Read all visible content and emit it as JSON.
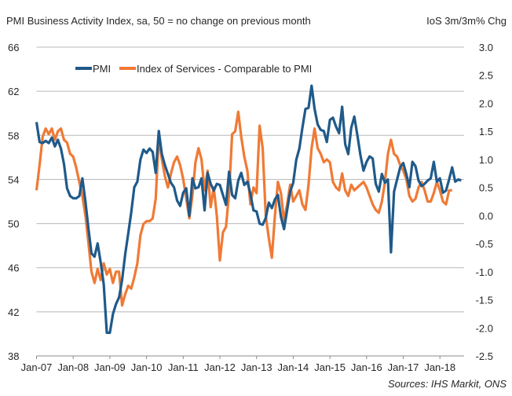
{
  "chart_data": {
    "type": "line",
    "title_left": "PMI Business Activity Index, sa, 50 = no change on previous month",
    "title_right": "IoS 3m/3m% Chg",
    "source": "Sources: IHS Markit, ONS",
    "x_start": "Jan-07",
    "x_tick_labels": [
      "Jan-07",
      "Jan-08",
      "Jan-09",
      "Jan-10",
      "Jan-11",
      "Jan-12",
      "Jan-13",
      "Jan-14",
      "Jan-15",
      "Jan-16",
      "Jan-17",
      "Jan-18"
    ],
    "y_left": {
      "min": 38,
      "max": 66,
      "ticks": [
        "66",
        "62",
        "58",
        "54",
        "50",
        "46",
        "42",
        "38"
      ]
    },
    "y_right": {
      "min": -2.5,
      "max": 3.0,
      "ticks": [
        "3.0",
        "2.5",
        "2.0",
        "1.5",
        "1.0",
        "0.5",
        "0.0",
        "-0.5",
        "-1.0",
        "-1.5",
        "-2.0",
        "-2.5"
      ]
    },
    "grid": true,
    "legend": {
      "position": "top",
      "entries": [
        "PMI",
        "Index of Services - Comparable to PMI"
      ]
    },
    "colors": {
      "pmi": "#1f5a8a",
      "ios": "#ef7a35",
      "grid": "#b8b8b8",
      "axis": "#8c8c8c"
    },
    "series": [
      {
        "name": "PMI",
        "axis": "left",
        "values": [
          59.2,
          57.4,
          57.3,
          57.5,
          57.3,
          57.8,
          57.0,
          57.6,
          56.8,
          55.4,
          53.2,
          52.5,
          52.3,
          52.3,
          52.5,
          54.1,
          52.0,
          49.5,
          47.3,
          47.0,
          48.2,
          46.5,
          44.5,
          40.1,
          40.1,
          41.8,
          42.7,
          43.3,
          44.9,
          47.2,
          49.1,
          51.0,
          53.3,
          53.8,
          55.8,
          56.7,
          56.4,
          56.8,
          56.5,
          54.6,
          58.4,
          56.3,
          55.3,
          54.5,
          53.7,
          53.3,
          52.1,
          51.6,
          52.8,
          53.2,
          50.7,
          54.1,
          53.2,
          53.3,
          54.1,
          51.2,
          54.6,
          53.6,
          53.0,
          53.6,
          53.5,
          52.6,
          51.7,
          54.7,
          52.6,
          52.3,
          53.9,
          54.6,
          53.5,
          53.8,
          52.7,
          51.2,
          51.1,
          50.0,
          49.9,
          50.5,
          51.9,
          51.4,
          52.2,
          52.6,
          50.6,
          49.5,
          51.2,
          52.9,
          53.7,
          55.8,
          56.8,
          58.7,
          60.4,
          60.5,
          62.5,
          60.4,
          59.0,
          58.5,
          58.4,
          57.4,
          59.4,
          59.6,
          58.8,
          58.2,
          60.6,
          57.2,
          56.3,
          58.7,
          59.7,
          58.0,
          56.2,
          54.8,
          55.6,
          56.1,
          55.9,
          53.6,
          52.9,
          54.5,
          53.7,
          54.0,
          47.4,
          52.9,
          54.0,
          55.1,
          55.5,
          54.5,
          53.3,
          55.6,
          55.2,
          53.9,
          53.4,
          53.6,
          53.9,
          54.1,
          55.6,
          53.8,
          54.1,
          52.8,
          53.0,
          54.0,
          55.1,
          53.8,
          54.0,
          53.9
        ]
      },
      {
        "name": "Index of Services - Comparable to PMI",
        "axis": "right",
        "values": [
          0.45,
          0.9,
          1.4,
          1.55,
          1.45,
          1.55,
          1.35,
          1.5,
          1.55,
          1.35,
          1.3,
          1.1,
          1.05,
          0.85,
          0.6,
          0.35,
          0.0,
          -0.5,
          -1.0,
          -1.2,
          -0.95,
          -1.15,
          -0.85,
          -1.05,
          -0.95,
          -1.2,
          -1.0,
          -1.0,
          -1.6,
          -1.4,
          -1.25,
          -1.3,
          -1.1,
          -0.85,
          -0.35,
          -0.15,
          -0.1,
          -0.1,
          -0.05,
          0.3,
          1.4,
          1.0,
          0.7,
          0.5,
          0.75,
          0.95,
          1.05,
          0.9,
          0.65,
          0.3,
          -0.05,
          0.35,
          0.95,
          1.2,
          1.0,
          0.45,
          0.8,
          0.15,
          0.5,
          0.0,
          -0.8,
          -0.3,
          -0.2,
          0.4,
          1.45,
          1.5,
          1.85,
          1.4,
          1.05,
          0.8,
          0.2,
          0.5,
          0.4,
          1.6,
          1.2,
          0.0,
          -0.4,
          -0.75,
          0.0,
          0.6,
          0.4,
          -0.1,
          0.2,
          0.55,
          0.25,
          0.35,
          0.45,
          0.2,
          0.1,
          0.55,
          1.2,
          1.55,
          1.2,
          1.1,
          0.95,
          1.0,
          0.95,
          0.6,
          0.5,
          0.45,
          0.75,
          0.45,
          0.35,
          0.55,
          0.45,
          0.5,
          0.55,
          0.6,
          0.5,
          0.35,
          0.2,
          0.1,
          0.05,
          0.25,
          0.6,
          1.1,
          1.35,
          1.1,
          1.05,
          0.9,
          0.8,
          0.65,
          0.35,
          0.25,
          0.3,
          0.5,
          0.6,
          0.45,
          0.25,
          0.25,
          0.4,
          0.6,
          0.45,
          0.25,
          0.2,
          0.45,
          0.45
        ]
      }
    ]
  }
}
